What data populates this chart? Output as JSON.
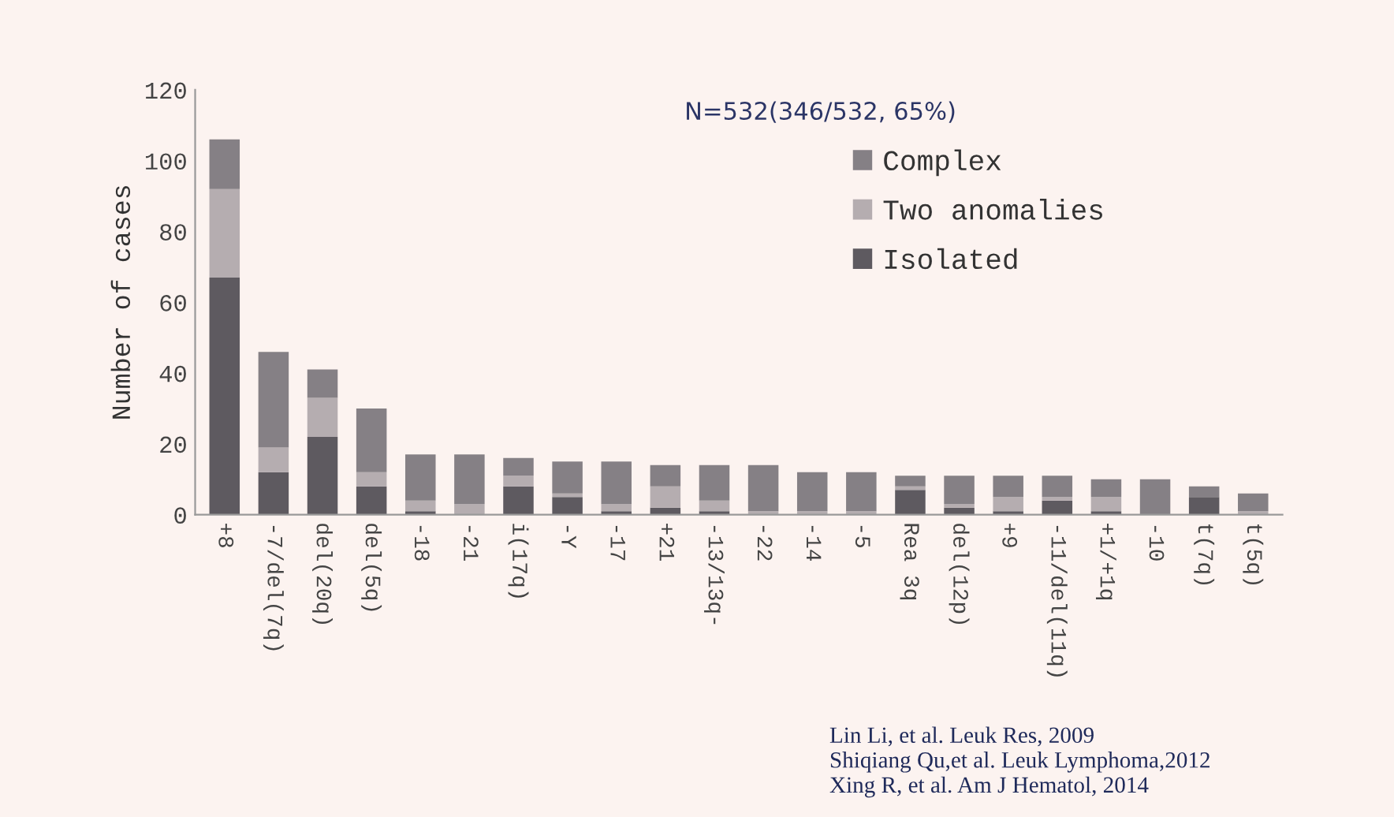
{
  "chart_data": {
    "type": "bar",
    "stacked": true,
    "ylabel": "Number of cases",
    "categories": [
      "+8",
      "-7/del(7q)",
      "del(20q)",
      "del(5q)",
      "-18",
      "-21",
      "i(17q)",
      "-Y",
      "-17",
      "+21",
      "-13/13q-",
      "-22",
      "-14",
      "-5",
      "Rea 3q",
      "del(12p)",
      "+9",
      "-11/del(11q)",
      "+1/+1q",
      "-10",
      "t(7q)",
      "t(5q)"
    ],
    "series": [
      {
        "name": "Isolated",
        "color": "#5e5a60",
        "values": [
          67,
          12,
          22,
          8,
          1,
          0,
          8,
          5,
          1,
          2,
          1,
          0,
          0,
          0,
          7,
          2,
          1,
          4,
          1,
          0,
          5,
          0
        ]
      },
      {
        "name": "Two anomalies",
        "color": "#b5adb0",
        "values": [
          25,
          7,
          11,
          4,
          3,
          3,
          3,
          1,
          2,
          6,
          3,
          1,
          1,
          1,
          1,
          1,
          4,
          1,
          4,
          0,
          0,
          1
        ]
      },
      {
        "name": "Complex",
        "color": "#858085",
        "values": [
          14,
          27,
          8,
          18,
          13,
          14,
          5,
          9,
          12,
          6,
          10,
          13,
          11,
          11,
          3,
          8,
          6,
          6,
          5,
          10,
          3,
          5
        ]
      }
    ],
    "ylim": [
      0,
      120
    ],
    "yticks": [
      0,
      20,
      40,
      60,
      80,
      100,
      120
    ],
    "grid": false,
    "legend": "top right",
    "annotations": [
      "N=532(346/532, 65%)",
      "Lin Li, et al. Leuk Res, 2009\nShiqiang Qu,et al. Leuk Lymphoma,2012\nXing R, et al. Am J Hematol, 2014"
    ]
  }
}
